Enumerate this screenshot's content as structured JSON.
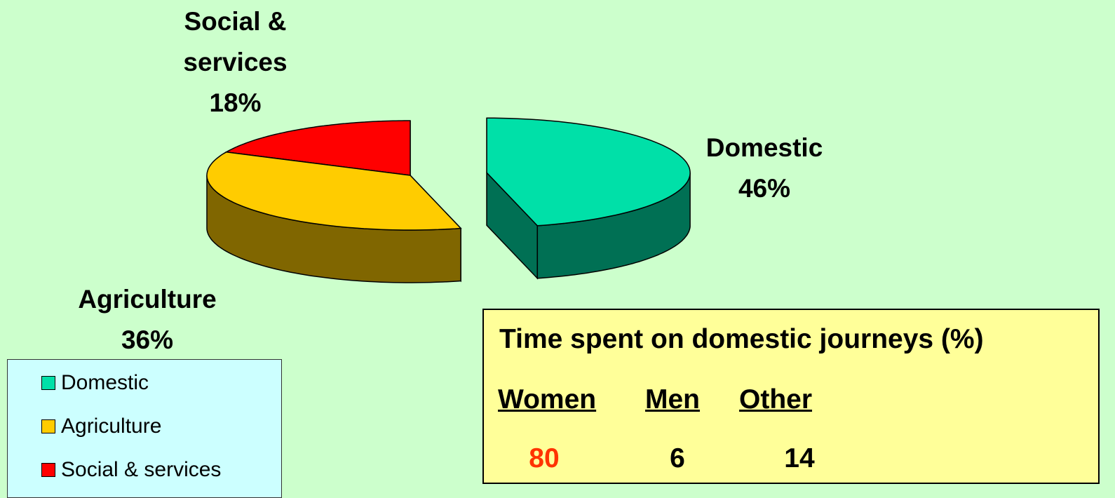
{
  "chart_data": {
    "type": "pie",
    "three_d": true,
    "categories": [
      "Domestic",
      "Agriculture",
      "Social & services"
    ],
    "values": [
      46,
      36,
      18
    ],
    "value_labels": [
      "46%",
      "36%",
      "18%"
    ],
    "colors": [
      "#00e0a8",
      "#ffcc00",
      "#ff0000"
    ],
    "exploded": [
      true,
      false,
      false
    ],
    "legend": "bottom-left"
  },
  "table": {
    "title": "Time spent on domestic journeys (%)",
    "columns": [
      "Women",
      "Men",
      "Other"
    ],
    "values": [
      80,
      6,
      14
    ],
    "highlight_color": "#ff3300"
  }
}
